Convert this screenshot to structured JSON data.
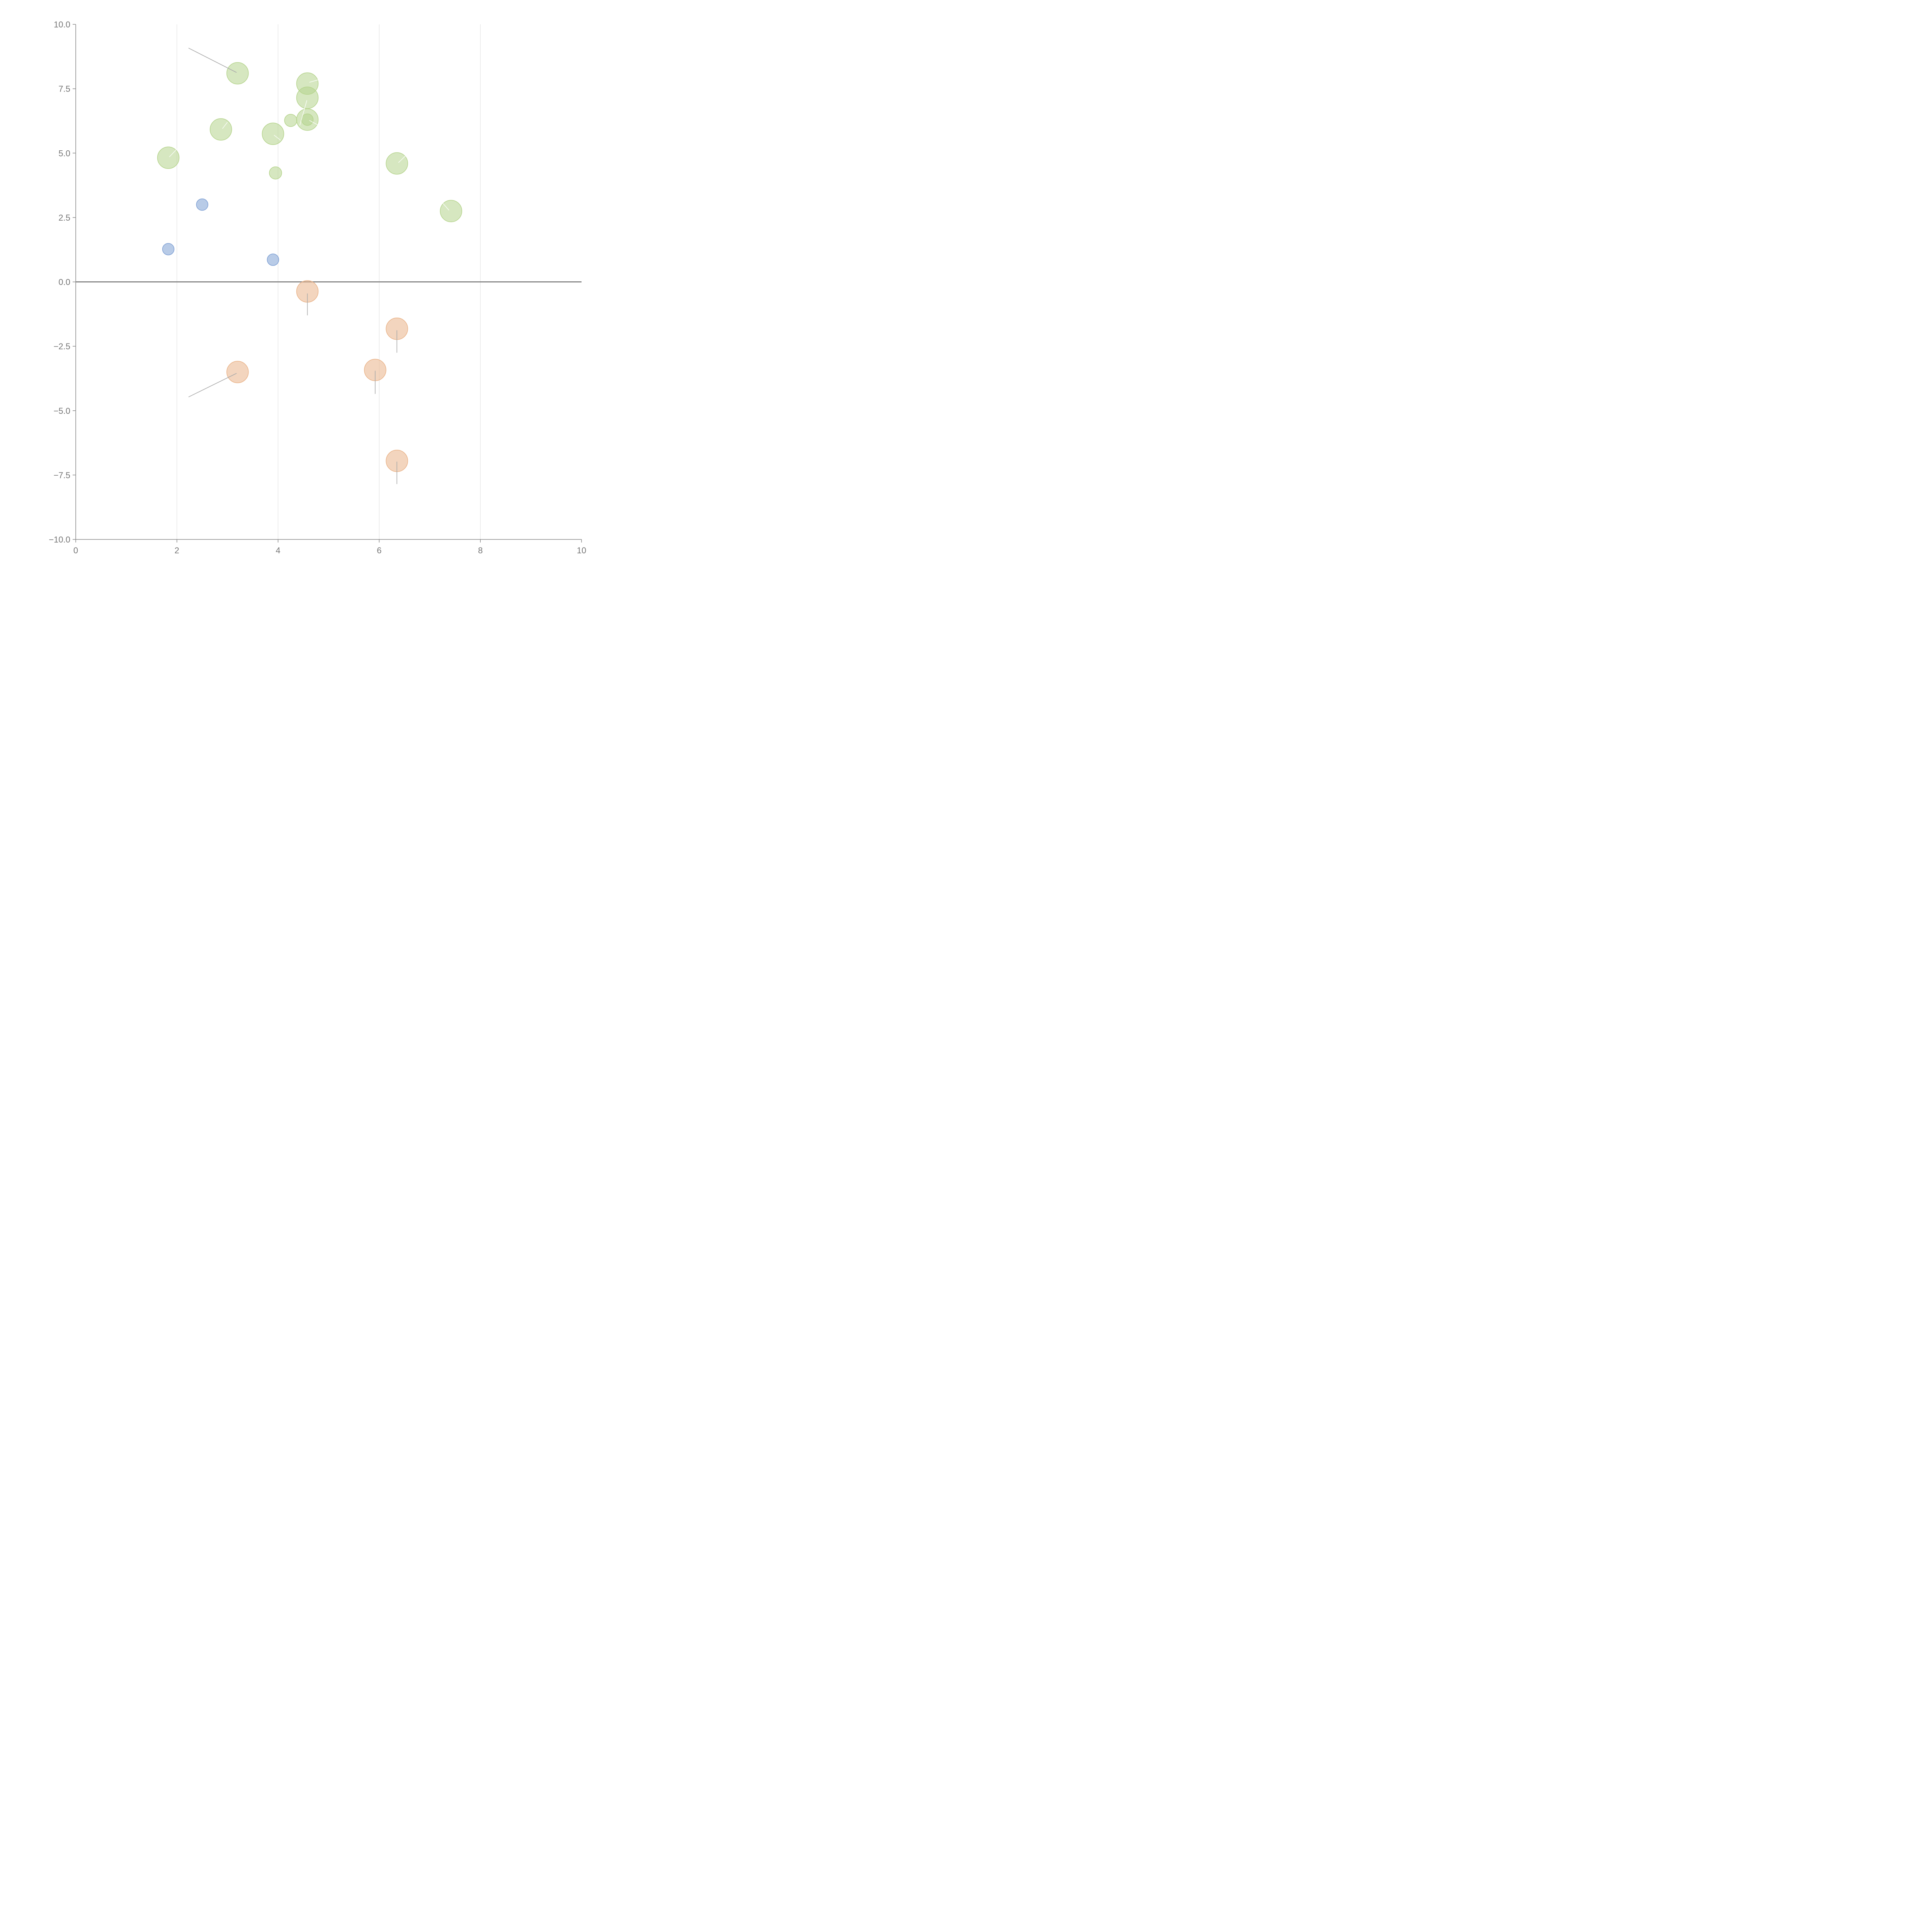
{
  "chart_data": {
    "type": "scatter",
    "title": "",
    "xlabel": "",
    "ylabel": "",
    "xlim": [
      0,
      10
    ],
    "ylim": [
      -10,
      10
    ],
    "x_ticks": [
      0,
      2,
      4,
      6,
      8,
      10
    ],
    "y_ticks": [
      -10,
      -7.5,
      -5,
      -2.5,
      0,
      2.5,
      5,
      7.5,
      10
    ],
    "x_tick_labels": [
      "0",
      "2",
      "4",
      "6",
      "8",
      "10"
    ],
    "y_tick_labels": [
      "−10.0",
      "−7.5",
      "−5.0",
      "−2.5",
      "0.0",
      "2.5",
      "5.0",
      "7.5",
      "10.0"
    ],
    "grid": "vertical",
    "zero_line": true,
    "series": [
      {
        "color": "#7ea0d4",
        "points": [
          {
            "x": 2.5,
            "y": 3.0,
            "size": 1
          },
          {
            "x": 1.83,
            "y": 1.27,
            "size": 1
          },
          {
            "x": 3.9,
            "y": 0.86,
            "size": 1
          }
        ]
      },
      {
        "color": "#b5d48c",
        "points": [
          {
            "x": 3.2,
            "y": 8.1,
            "size": 2
          },
          {
            "x": 4.58,
            "y": 7.7,
            "size": 2
          },
          {
            "x": 4.58,
            "y": 7.15,
            "size": 2
          },
          {
            "x": 4.25,
            "y": 6.27,
            "size": 1.1
          },
          {
            "x": 4.58,
            "y": 6.3,
            "size": 2
          },
          {
            "x": 4.58,
            "y": 6.3,
            "size": 1
          },
          {
            "x": 2.87,
            "y": 5.92,
            "size": 2
          },
          {
            "x": 3.9,
            "y": 5.75,
            "size": 2
          },
          {
            "x": 1.83,
            "y": 4.82,
            "size": 2
          },
          {
            "x": 6.35,
            "y": 4.6,
            "size": 2
          },
          {
            "x": 3.95,
            "y": 4.23,
            "size": 1.1
          },
          {
            "x": 7.42,
            "y": 2.75,
            "size": 2
          }
        ]
      },
      {
        "color": "#eab388",
        "points": [
          {
            "x": 4.58,
            "y": -0.37,
            "size": 2
          },
          {
            "x": 6.35,
            "y": -1.82,
            "size": 2
          },
          {
            "x": 3.2,
            "y": -3.5,
            "size": 2
          },
          {
            "x": 5.92,
            "y": -3.42,
            "size": 2
          },
          {
            "x": 6.35,
            "y": -6.95,
            "size": 2
          }
        ]
      }
    ],
    "leaders": [
      {
        "from": [
          3.18,
          8.13
        ],
        "to": [
          2.23,
          9.08
        ],
        "color": "gray"
      },
      {
        "from": [
          3.18,
          -3.55
        ],
        "to": [
          2.23,
          -4.47
        ],
        "color": "gray"
      },
      {
        "from": [
          4.58,
          -0.45
        ],
        "to": [
          4.58,
          -1.3
        ],
        "color": "gray"
      },
      {
        "from": [
          6.35,
          -1.88
        ],
        "to": [
          6.35,
          -2.75
        ],
        "color": "gray"
      },
      {
        "from": [
          5.92,
          -3.45
        ],
        "to": [
          5.92,
          -4.35
        ],
        "color": "gray"
      },
      {
        "from": [
          6.35,
          -6.98
        ],
        "to": [
          6.35,
          -7.85
        ],
        "color": "gray"
      },
      {
        "from": [
          4.62,
          7.75
        ],
        "to": [
          4.8,
          7.85
        ],
        "color": "white"
      },
      {
        "from": [
          4.57,
          7.05
        ],
        "to": [
          4.43,
          6.08
        ],
        "color": "white"
      },
      {
        "from": [
          4.62,
          6.27
        ],
        "to": [
          4.78,
          6.1
        ],
        "color": "white"
      },
      {
        "from": [
          2.9,
          5.95
        ],
        "to": [
          3.0,
          6.2
        ],
        "color": "white"
      },
      {
        "from": [
          3.92,
          5.7
        ],
        "to": [
          4.05,
          5.5
        ],
        "color": "white"
      },
      {
        "from": [
          1.85,
          4.85
        ],
        "to": [
          2.02,
          5.2
        ],
        "color": "white"
      },
      {
        "from": [
          6.38,
          4.63
        ],
        "to": [
          6.55,
          4.95
        ],
        "color": "white"
      },
      {
        "from": [
          7.38,
          2.78
        ],
        "to": [
          7.25,
          3.07
        ],
        "color": "white"
      }
    ]
  }
}
